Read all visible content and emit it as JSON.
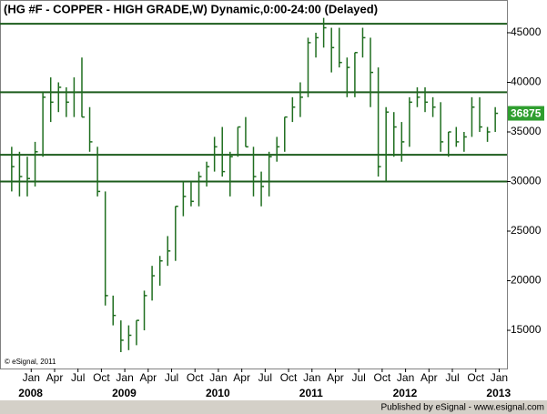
{
  "chart_data": {
    "type": "ohlc",
    "title": "(HG #F - COPPER - HIGH GRADE,W) Dynamic,0:00-24:00 (Delayed)",
    "credit": "© eSignal, 2011",
    "color": "#1f6e1f",
    "level_color": "#1c5c1c",
    "x": [
      "2007-10",
      "2007-11",
      "2007-12",
      "2008-01",
      "2008-02",
      "2008-03",
      "2008-04",
      "2008-05",
      "2008-06",
      "2008-07",
      "2008-08",
      "2008-09",
      "2008-10",
      "2008-11",
      "2008-12",
      "2009-01",
      "2009-02",
      "2009-03",
      "2009-04",
      "2009-05",
      "2009-06",
      "2009-07",
      "2009-08",
      "2009-09",
      "2009-10",
      "2009-11",
      "2009-12",
      "2010-01",
      "2010-02",
      "2010-03",
      "2010-04",
      "2010-05",
      "2010-06",
      "2010-07",
      "2010-08",
      "2010-09",
      "2010-10",
      "2010-11",
      "2010-12",
      "2011-01",
      "2011-02",
      "2011-03",
      "2011-04",
      "2011-05",
      "2011-06",
      "2011-07",
      "2011-08",
      "2011-09",
      "2011-10",
      "2011-11",
      "2011-12",
      "2012-01",
      "2012-02",
      "2012-03",
      "2012-04",
      "2012-05",
      "2012-06",
      "2012-07",
      "2012-08",
      "2012-09",
      "2012-10",
      "2012-11",
      "2012-12"
    ],
    "high": [
      33500,
      33000,
      32500,
      34000,
      39000,
      40500,
      40000,
      39500,
      40500,
      42500,
      37500,
      33500,
      29000,
      18500,
      16000,
      15500,
      16000,
      19000,
      21500,
      22500,
      24500,
      27500,
      30000,
      30000,
      31000,
      32000,
      34500,
      35500,
      33000,
      35500,
      36500,
      33500,
      31000,
      33000,
      34500,
      36500,
      38500,
      40000,
      44500,
      45000,
      46500,
      45500,
      45500,
      42500,
      43000,
      45500,
      44500,
      41500,
      37500,
      37000,
      36000,
      38500,
      39500,
      39500,
      38500,
      38000,
      35000,
      35500,
      35000,
      38500,
      38500,
      35500,
      37500
    ],
    "low": [
      29000,
      28500,
      28500,
      29500,
      32500,
      36000,
      37000,
      36500,
      36500,
      36500,
      33000,
      28500,
      17500,
      15500,
      12800,
      13000,
      13500,
      15000,
      18000,
      19500,
      21500,
      22000,
      26500,
      27500,
      27500,
      29500,
      31000,
      30500,
      28500,
      32500,
      33500,
      28500,
      27500,
      28500,
      32000,
      33000,
      36000,
      36500,
      38500,
      42500,
      43500,
      41000,
      41500,
      38500,
      38500,
      42500,
      37500,
      30500,
      30000,
      32500,
      32000,
      33500,
      37500,
      37000,
      36500,
      33000,
      32500,
      33500,
      33000,
      34500,
      35000,
      34000,
      35000
    ],
    "close": [
      31500,
      30500,
      30300,
      33000,
      38500,
      38000,
      39500,
      38000,
      39000,
      36500,
      34000,
      29000,
      18500,
      16500,
      14000,
      14500,
      16000,
      18500,
      20500,
      22000,
      23000,
      27500,
      28500,
      28000,
      30500,
      31500,
      33500,
      31000,
      32500,
      35500,
      33500,
      30500,
      29500,
      32500,
      33500,
      36500,
      37500,
      38500,
      44000,
      44500,
      45500,
      43500,
      42000,
      41500,
      43000,
      44500,
      41000,
      31500,
      37000,
      35500,
      34000,
      38000,
      38500,
      38000,
      37500,
      34000,
      35000,
      34000,
      34500,
      37500,
      35500,
      35000,
      36875
    ],
    "levels": [
      45900,
      39000,
      32700,
      30000
    ],
    "xlim": [
      "2007-09",
      "2013-02"
    ],
    "ylim": [
      11150,
      48300
    ],
    "yticks": [
      15000,
      20000,
      25000,
      30000,
      35000,
      40000,
      45000
    ],
    "xticks": [
      {
        "value": "2008-01",
        "label": "Jan"
      },
      {
        "value": "2008-04",
        "label": "Apr"
      },
      {
        "value": "2008-07",
        "label": "Jul"
      },
      {
        "value": "2008-10",
        "label": "Oct"
      },
      {
        "value": "2009-01",
        "label": "Jan"
      },
      {
        "value": "2009-04",
        "label": "Apr"
      },
      {
        "value": "2009-07",
        "label": "Jul"
      },
      {
        "value": "2009-10",
        "label": "Oct"
      },
      {
        "value": "2010-01",
        "label": "Jan"
      },
      {
        "value": "2010-04",
        "label": "Apr"
      },
      {
        "value": "2010-07",
        "label": "Jul"
      },
      {
        "value": "2010-10",
        "label": "Oct"
      },
      {
        "value": "2011-01",
        "label": "Jan"
      },
      {
        "value": "2011-04",
        "label": "Apr"
      },
      {
        "value": "2011-07",
        "label": "Jul"
      },
      {
        "value": "2011-10",
        "label": "Oct"
      },
      {
        "value": "2012-01",
        "label": "Jan"
      },
      {
        "value": "2012-04",
        "label": "Apr"
      },
      {
        "value": "2012-07",
        "label": "Jul"
      },
      {
        "value": "2012-10",
        "label": "Oct"
      },
      {
        "value": "2013-01",
        "label": "Jan"
      }
    ],
    "year_labels": [
      {
        "value": "2008-01",
        "label": "2008"
      },
      {
        "value": "2009-01",
        "label": "2009"
      },
      {
        "value": "2010-01",
        "label": "2010"
      },
      {
        "value": "2011-01",
        "label": "2011"
      },
      {
        "value": "2012-01",
        "label": "2012"
      },
      {
        "value": "2013-01",
        "label": "2013"
      }
    ]
  },
  "footer": "Published by eSignal - www.esignal.com"
}
